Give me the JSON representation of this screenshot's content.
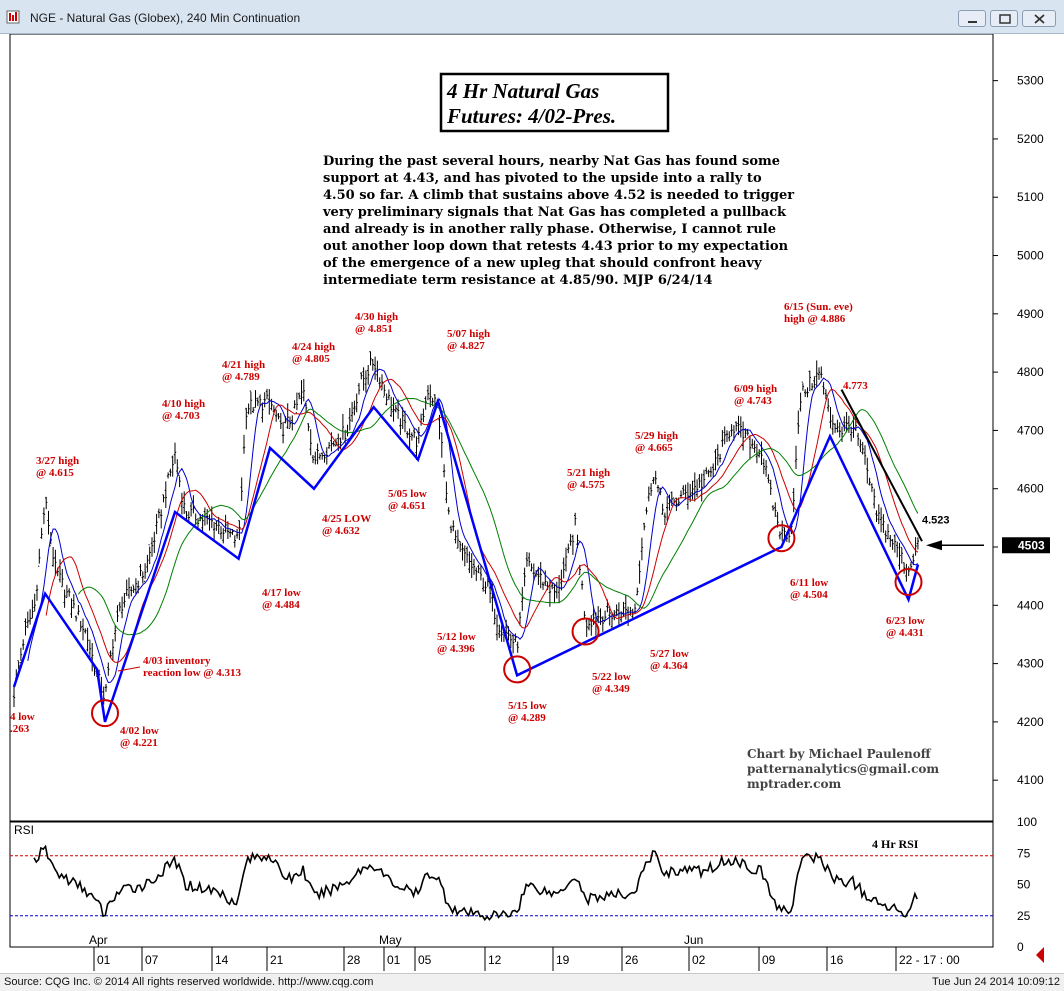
{
  "window": {
    "title": "NGE - Natural Gas (Globex), 240 Min Continuation"
  },
  "statusbar": {
    "left": "Source: CQG Inc. © 2014 All rights reserved worldwide. http://www.cqg.com",
    "right": "Tue Jun 24 2014 10:09:12"
  },
  "chart_data": {
    "type": "ohlc",
    "title": "4 Hr Natural Gas\nFutures:  4/02-Pres.",
    "commentary": "During the past several hours, nearby Nat Gas has found some\nsupport at 4.43, and has pivoted to the upside into a rally to\n4.50 so far. A climb that sustains above 4.52 is needed to trigger\nvery preliminary signals that Nat Gas has completed a pullback\nand already is in another rally phase. Otherwise, I cannot rule\nout another loop down that retests 4.43 prior to my expectation\nof the emergence of a new upleg that should confront heavy\nintermediate term resistance at 4.85/90.  MJP  6/24/14",
    "credit": "Chart by Michael Paulenoff\npatternanalytics@gmail.com\nmptrader.com",
    "ylim": [
      4030,
      5380
    ],
    "yticks": [
      4100,
      4200,
      4300,
      4400,
      4500,
      4600,
      4700,
      4800,
      4900,
      5000,
      5100,
      5200,
      5300
    ],
    "last_price": "4503",
    "arrow_label": "4.523",
    "month_labels": [
      "Apr",
      "May",
      "Jun"
    ],
    "date_ticks": [
      "01",
      "07",
      "14",
      "21",
      "28",
      "01",
      "05",
      "12",
      "19",
      "26",
      "02",
      "09",
      "16",
      "22 - 17 : 00"
    ],
    "close_path": [
      [
        "3/24",
        4250
      ],
      [
        "3/25",
        4350
      ],
      [
        "3/26",
        4400
      ],
      [
        "3/27",
        4580
      ],
      [
        "3/28",
        4460
      ],
      [
        "3/31",
        4350
      ],
      [
        "4/01",
        4280
      ],
      [
        "4/02",
        4240
      ],
      [
        "4/03",
        4340
      ],
      [
        "4/04",
        4400
      ],
      [
        "4/07",
        4460
      ],
      [
        "4/08",
        4520
      ],
      [
        "4/09",
        4590
      ],
      [
        "4/10",
        4660
      ],
      [
        "4/11",
        4560
      ],
      [
        "4/14",
        4540
      ],
      [
        "4/15",
        4530
      ],
      [
        "4/16",
        4520
      ],
      [
        "4/17",
        4510
      ],
      [
        "4/18",
        4740
      ],
      [
        "4/21",
        4750
      ],
      [
        "4/22",
        4700
      ],
      [
        "4/23",
        4720
      ],
      [
        "4/24",
        4770
      ],
      [
        "4/25",
        4650
      ],
      [
        "4/28",
        4700
      ],
      [
        "4/29",
        4780
      ],
      [
        "4/30",
        4820
      ],
      [
        "5/01",
        4760
      ],
      [
        "5/02",
        4730
      ],
      [
        "5/05",
        4680
      ],
      [
        "5/06",
        4770
      ],
      [
        "5/07",
        4740
      ],
      [
        "5/08",
        4560
      ],
      [
        "5/09",
        4500
      ],
      [
        "5/12",
        4430
      ],
      [
        "5/13",
        4370
      ],
      [
        "5/14",
        4350
      ],
      [
        "5/15",
        4330
      ],
      [
        "5/16",
        4470
      ],
      [
        "5/19",
        4420
      ],
      [
        "5/20",
        4470
      ],
      [
        "5/21",
        4540
      ],
      [
        "5/22",
        4370
      ],
      [
        "5/23",
        4380
      ],
      [
        "5/26",
        4390
      ],
      [
        "5/27",
        4390
      ],
      [
        "5/28",
        4540
      ],
      [
        "5/29",
        4630
      ],
      [
        "5/30",
        4560
      ],
      [
        "6/02",
        4600
      ],
      [
        "6/03",
        4610
      ],
      [
        "6/04",
        4630
      ],
      [
        "6/05",
        4670
      ],
      [
        "6/06",
        4710
      ],
      [
        "6/09",
        4660
      ],
      [
        "6/10",
        4580
      ],
      [
        "6/11",
        4520
      ],
      [
        "6/12",
        4530
      ],
      [
        "6/13",
        4760
      ],
      [
        "6/15",
        4800
      ],
      [
        "6/16",
        4720
      ],
      [
        "6/17",
        4700
      ],
      [
        "6/18",
        4710
      ],
      [
        "6/19",
        4650
      ],
      [
        "6/20",
        4560
      ],
      [
        "6/23",
        4460
      ],
      [
        "6/24",
        4510
      ]
    ],
    "moving_averages": [
      {
        "name": "ma-fast",
        "color": "#0000cc"
      },
      {
        "name": "ma-mid",
        "color": "#cc0000"
      },
      {
        "name": "ma-slow",
        "color": "#008000"
      }
    ],
    "wave_path": [
      [
        "3/24",
        4260
      ],
      [
        "3/27",
        4420
      ],
      [
        "4/01",
        4290
      ],
      [
        "4/02",
        4200
      ],
      [
        "4/10",
        4560
      ],
      [
        "4/17",
        4480
      ],
      [
        "4/21",
        4670
      ],
      [
        "4/25",
        4600
      ],
      [
        "4/30",
        4740
      ],
      [
        "5/05",
        4650
      ],
      [
        "5/07",
        4750
      ],
      [
        "5/15",
        4280
      ],
      [
        "6/11",
        4500
      ],
      [
        "6/16",
        4690
      ],
      [
        "6/23",
        4410
      ],
      [
        "6/24",
        4470
      ]
    ],
    "trendline": [
      [
        "6/17",
        4770
      ],
      [
        "6/24",
        4510
      ]
    ],
    "annotations": [
      {
        "date": "3/24",
        "text": "4 low\n.263"
      },
      {
        "date": "3/27",
        "text": "3/27 high\n@ 4.615"
      },
      {
        "date": "4/02",
        "text": "4/02 low\n@ 4.221"
      },
      {
        "date": "4/03",
        "text": "4/03 inventory\nreaction low @ 4.313"
      },
      {
        "date": "4/10",
        "text": "4/10 high\n@ 4.703"
      },
      {
        "date": "4/17",
        "text": "4/17 low\n@ 4.484"
      },
      {
        "date": "4/21",
        "text": "4/21 high\n@ 4.789"
      },
      {
        "date": "4/24",
        "text": "4/24 high\n@ 4.805"
      },
      {
        "date": "4/25",
        "text": "4/25 LOW\n@ 4.632"
      },
      {
        "date": "4/30",
        "text": "4/30 high\n@ 4.851"
      },
      {
        "date": "5/05",
        "text": "5/05 low\n@ 4.651"
      },
      {
        "date": "5/07",
        "text": "5/07 high\n@ 4.827"
      },
      {
        "date": "5/12",
        "text": "5/12 low\n@ 4.396"
      },
      {
        "date": "5/15",
        "text": "5/15 low\n@ 4.289"
      },
      {
        "date": "5/21",
        "text": "5/21 high\n@ 4.575"
      },
      {
        "date": "5/22",
        "text": "5/22 low\n@ 4.349"
      },
      {
        "date": "5/27",
        "text": "5/27 low\n@ 4.364"
      },
      {
        "date": "5/29",
        "text": "5/29 high\n@ 4.665"
      },
      {
        "date": "6/09",
        "text": "6/09 high\n@ 4.743"
      },
      {
        "date": "6/11",
        "text": "6/11 low\n@ 4.504"
      },
      {
        "date": "6/15",
        "text": "6/15 (Sun. eve)\nhigh @ 4.886"
      },
      {
        "date": "6/17",
        "text": "4.773"
      },
      {
        "date": "6/23",
        "text": "6/23 low\n@ 4.431"
      }
    ],
    "circled_lows": [
      [
        "4/02",
        4215
      ],
      [
        "5/15",
        4290
      ],
      [
        "5/22",
        4355
      ],
      [
        "6/11",
        4515
      ],
      [
        "6/23",
        4440
      ]
    ],
    "rsi": {
      "label": "RSI",
      "title": "4 Hr RSI",
      "ylim": [
        0,
        100
      ],
      "yticks": [
        0,
        25,
        50,
        75,
        100
      ],
      "bands": [
        25,
        73
      ],
      "values": [
        [
          "3/24",
          74
        ],
        [
          "3/25",
          72
        ],
        [
          "3/26",
          70
        ],
        [
          "3/27",
          78
        ],
        [
          "3/28",
          60
        ],
        [
          "3/31",
          45
        ],
        [
          "4/01",
          35
        ],
        [
          "4/02",
          26
        ],
        [
          "4/03",
          40
        ],
        [
          "4/04",
          45
        ],
        [
          "4/07",
          50
        ],
        [
          "4/08",
          55
        ],
        [
          "4/09",
          62
        ],
        [
          "4/10",
          70
        ],
        [
          "4/11",
          50
        ],
        [
          "4/14",
          45
        ],
        [
          "4/15",
          42
        ],
        [
          "4/16",
          38
        ],
        [
          "4/17",
          38
        ],
        [
          "4/18",
          70
        ],
        [
          "4/21",
          74
        ],
        [
          "4/22",
          58
        ],
        [
          "4/23",
          55
        ],
        [
          "4/24",
          62
        ],
        [
          "4/25",
          40
        ],
        [
          "4/28",
          52
        ],
        [
          "4/29",
          62
        ],
        [
          "4/30",
          66
        ],
        [
          "5/01",
          55
        ],
        [
          "5/02",
          50
        ],
        [
          "5/05",
          42
        ],
        [
          "5/06",
          60
        ],
        [
          "5/07",
          55
        ],
        [
          "5/08",
          35
        ],
        [
          "5/09",
          28
        ],
        [
          "5/12",
          25
        ],
        [
          "5/13",
          25
        ],
        [
          "5/14",
          26
        ],
        [
          "5/15",
          30
        ],
        [
          "5/16",
          50
        ],
        [
          "5/19",
          42
        ],
        [
          "5/20",
          50
        ],
        [
          "5/21",
          58
        ],
        [
          "5/22",
          38
        ],
        [
          "5/23",
          40
        ],
        [
          "5/26",
          42
        ],
        [
          "5/27",
          44
        ],
        [
          "5/28",
          62
        ],
        [
          "5/29",
          76
        ],
        [
          "5/30",
          60
        ],
        [
          "6/02",
          62
        ],
        [
          "6/03",
          60
        ],
        [
          "6/04",
          64
        ],
        [
          "6/05",
          68
        ],
        [
          "6/06",
          70
        ],
        [
          "6/09",
          60
        ],
        [
          "6/10",
          40
        ],
        [
          "6/11",
          28
        ],
        [
          "6/12",
          30
        ],
        [
          "6/13",
          70
        ],
        [
          "6/15",
          72
        ],
        [
          "6/16",
          58
        ],
        [
          "6/17",
          52
        ],
        [
          "6/18",
          52
        ],
        [
          "6/19",
          42
        ],
        [
          "6/20",
          35
        ],
        [
          "6/23",
          28
        ],
        [
          "6/24",
          44
        ]
      ]
    },
    "colors": {
      "annotation": "#cc0000",
      "wave": "#0000ff",
      "bars": "#000000",
      "rsi_band": "#cc0000",
      "rsi_band_low": "#0000cc"
    }
  }
}
